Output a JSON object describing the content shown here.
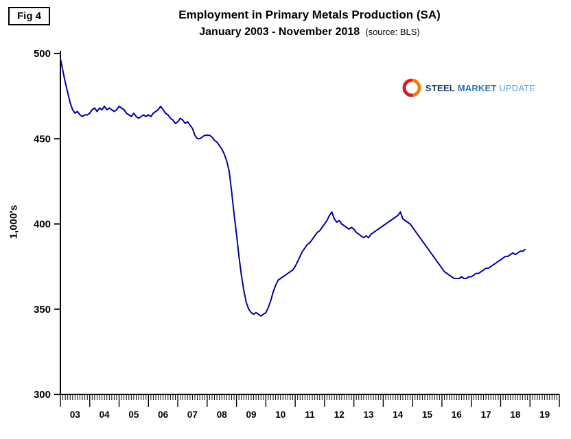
{
  "figure_label": "Fig 4",
  "title": "Employment in Primary Metals Production (SA)",
  "subtitle": "January 2003 - November 2018",
  "source_note": "(source: BLS)",
  "y_axis_label": "1,000's",
  "logo": {
    "word1": "STEEL",
    "word2": "MARKET",
    "word3": "UPDATE"
  },
  "colors": {
    "line": "#0000A0",
    "logo_orange": "#F07F09",
    "logo_red": "#CE2029",
    "logo_dark_blue": "#17375E",
    "logo_blue": "#2E75B6",
    "logo_light_blue": "#5B9BD5"
  },
  "chart_data": {
    "type": "line",
    "title": "Employment in Primary Metals Production (SA)",
    "subtitle": "January 2003 - November 2018 (source: BLS)",
    "ylabel": "1,000's",
    "ylim": [
      300,
      500
    ],
    "y_ticks": [
      300,
      350,
      400,
      450,
      500
    ],
    "x_tick_labels": [
      "03",
      "04",
      "05",
      "06",
      "07",
      "08",
      "09",
      "10",
      "11",
      "12",
      "13",
      "14",
      "15",
      "16",
      "17",
      "18",
      "19"
    ],
    "x_start": "2003-01",
    "x_end": "2018-11",
    "grid": false,
    "legend": "none",
    "series": [
      {
        "name": "Employment in Primary Metals Production (1,000's, SA)",
        "frequency": "monthly",
        "values": [
          497,
          490,
          483,
          477,
          471,
          467,
          465,
          466,
          464,
          463,
          464,
          464,
          465,
          467,
          468,
          466,
          468,
          467,
          469,
          467,
          468,
          467,
          466,
          467,
          469,
          468,
          467,
          465,
          464,
          463,
          465,
          463,
          462,
          463,
          464,
          463,
          464,
          463,
          465,
          466,
          467,
          469,
          467,
          465,
          464,
          462,
          461,
          459,
          460,
          462,
          461,
          459,
          460,
          458,
          456,
          452,
          450,
          450,
          451,
          452,
          452,
          452,
          451,
          449,
          448,
          446,
          444,
          441,
          437,
          431,
          419,
          406,
          394,
          381,
          370,
          361,
          354,
          350,
          348,
          347,
          348,
          347,
          346,
          347,
          348,
          351,
          355,
          360,
          364,
          367,
          368,
          369,
          370,
          371,
          372,
          373,
          375,
          378,
          381,
          384,
          386,
          388,
          389,
          391,
          393,
          395,
          396,
          398,
          400,
          402,
          405,
          407,
          403,
          401,
          402,
          400,
          399,
          398,
          397,
          398,
          397,
          395,
          394,
          393,
          392,
          393,
          392,
          394,
          395,
          396,
          397,
          398,
          399,
          400,
          401,
          402,
          403,
          404,
          405,
          407,
          403,
          402,
          401,
          400,
          398,
          396,
          394,
          392,
          390,
          388,
          386,
          384,
          382,
          380,
          378,
          376,
          374,
          372,
          371,
          370,
          369,
          368,
          368,
          368,
          369,
          368,
          368,
          369,
          369,
          370,
          371,
          371,
          372,
          373,
          374,
          374,
          375,
          376,
          377,
          378,
          379,
          380,
          381,
          381,
          382,
          383,
          382,
          383,
          384,
          384,
          385
        ]
      }
    ]
  }
}
